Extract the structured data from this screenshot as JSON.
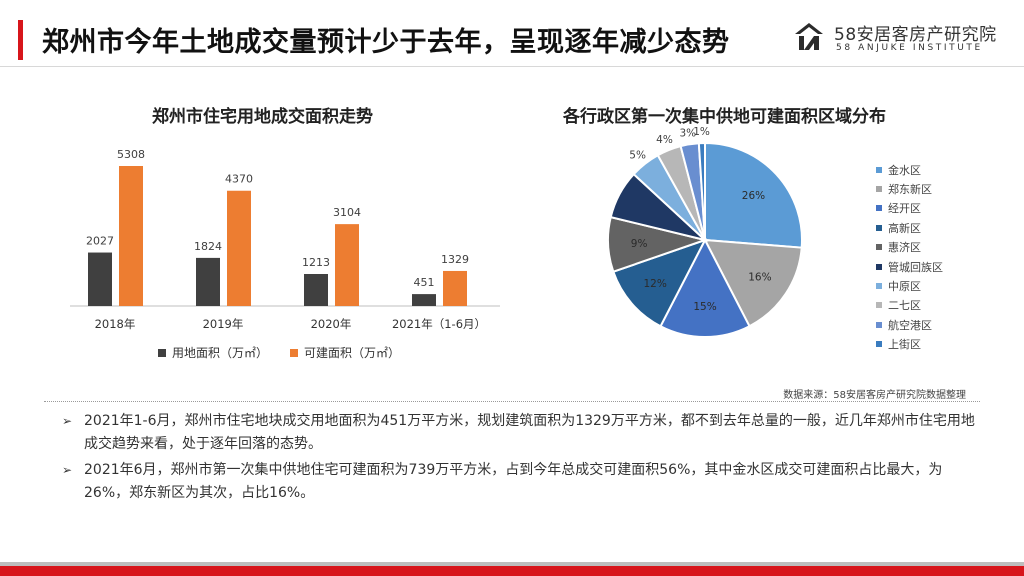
{
  "page": {
    "title": "郑州市今年土地成交量预计少于去年，呈现逐年减少态势"
  },
  "logo": {
    "name_cn": "58安居客房产研究院",
    "name_en": "58 ANJUKE INSTITUTE"
  },
  "colors": {
    "accent_red": "#d7151b",
    "bar_dark": "#404040",
    "bar_orange": "#ed7d31"
  },
  "chart_data": [
    {
      "type": "bar",
      "title": "郑州市住宅用地成交面积走势",
      "categories": [
        "2018年",
        "2019年",
        "2020年",
        "2021年（1-6月）"
      ],
      "series": [
        {
          "name": "用地面积（万㎡）",
          "color": "#404040",
          "values": [
            2027,
            1824,
            1213,
            451
          ]
        },
        {
          "name": "可建面积（万㎡）",
          "color": "#ed7d31",
          "values": [
            5308,
            4370,
            3104,
            1329
          ]
        }
      ],
      "ylim": [
        0,
        5308
      ],
      "grid": false,
      "legend": "bottom"
    },
    {
      "type": "pie",
      "title": "各行政区第一次集中供地可建面积区域分布",
      "slices": [
        {
          "name": "金水区",
          "value": 26,
          "label": "26%",
          "color": "#5b9bd5"
        },
        {
          "name": "郑东新区",
          "value": 16,
          "label": "16%",
          "color": "#a5a5a5"
        },
        {
          "name": "经开区",
          "value": 15,
          "label": "15%",
          "color": "#4472c4"
        },
        {
          "name": "高新区",
          "value": 12,
          "label": "12%",
          "color": "#255e91"
        },
        {
          "name": "惠济区",
          "value": 9,
          "label": "9%",
          "color": "#636363"
        },
        {
          "name": "管城回族区",
          "value": 8,
          "label": "",
          "color": "#1f3864"
        },
        {
          "name": "中原区",
          "value": 5,
          "label": "5%",
          "color": "#7cafdd"
        },
        {
          "name": "二七区",
          "value": 4,
          "label": "4%",
          "color": "#b7b7b7"
        },
        {
          "name": "航空港区",
          "value": 3,
          "label": "3%",
          "color": "#698ed0"
        },
        {
          "name": "上街区",
          "value": 1,
          "label": "1%",
          "color": "#3a7cbf"
        }
      ],
      "legend": "right"
    }
  ],
  "source": "数据来源：58安居客房产研究院数据整理",
  "notes": [
    "2021年1-6月，郑州市住宅地块成交用地面积为451万平方米，规划建筑面积为1329万平方米，都不到去年总量的一般，近几年郑州市住宅用地成交趋势来看，处于逐年回落的态势。",
    "2021年6月，郑州市第一次集中供地住宅可建面积为739万平方米，占到今年总成交可建面积56%，其中金水区成交可建面积占比最大，为26%，郑东新区为其次，占比16%。"
  ]
}
